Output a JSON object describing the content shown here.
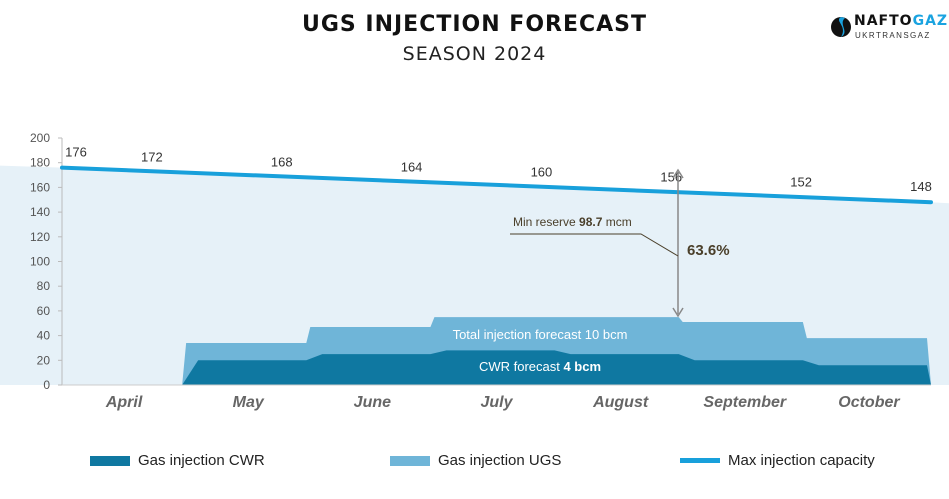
{
  "chart_data": {
    "type": "area",
    "title": "UGS INJECTION FORECAST",
    "subtitle": "SEASON 2024",
    "categories": [
      "April",
      "May",
      "June",
      "July",
      "August",
      "September",
      "October"
    ],
    "ylim": [
      0,
      200
    ],
    "yticks": [
      0,
      20,
      40,
      60,
      80,
      100,
      120,
      140,
      160,
      180,
      200
    ],
    "grid": false,
    "legend_position": "bottom",
    "series": [
      {
        "name": "Gas injection CWR",
        "type": "area",
        "color": "#0f78a1",
        "values": [
          0,
          20,
          25,
          28,
          25,
          20,
          16
        ]
      },
      {
        "name": "Gas injection UGS",
        "type": "area",
        "color": "#6fb5d8",
        "values": [
          0,
          34,
          47,
          55,
          55,
          51,
          38
        ]
      },
      {
        "name": "Max injection capacity",
        "type": "line",
        "color": "#18a0db",
        "start": 176,
        "end": 148,
        "labels": [
          176,
          172,
          168,
          164,
          160,
          156,
          152,
          148
        ]
      }
    ],
    "annotations": {
      "reserve_prefix": "Min reserve ",
      "reserve_value": "98.7",
      "reserve_unit": " mcm",
      "percent": "63.6%",
      "total_label": "Total injection forecast 10 bcm",
      "cwr_prefix": "CWR forecast ",
      "cwr_value": "4 bcm"
    }
  },
  "logo": {
    "text_a": "NAFTO",
    "text_b": "GAZ",
    "sub": "UKRTRANSGAZ"
  }
}
